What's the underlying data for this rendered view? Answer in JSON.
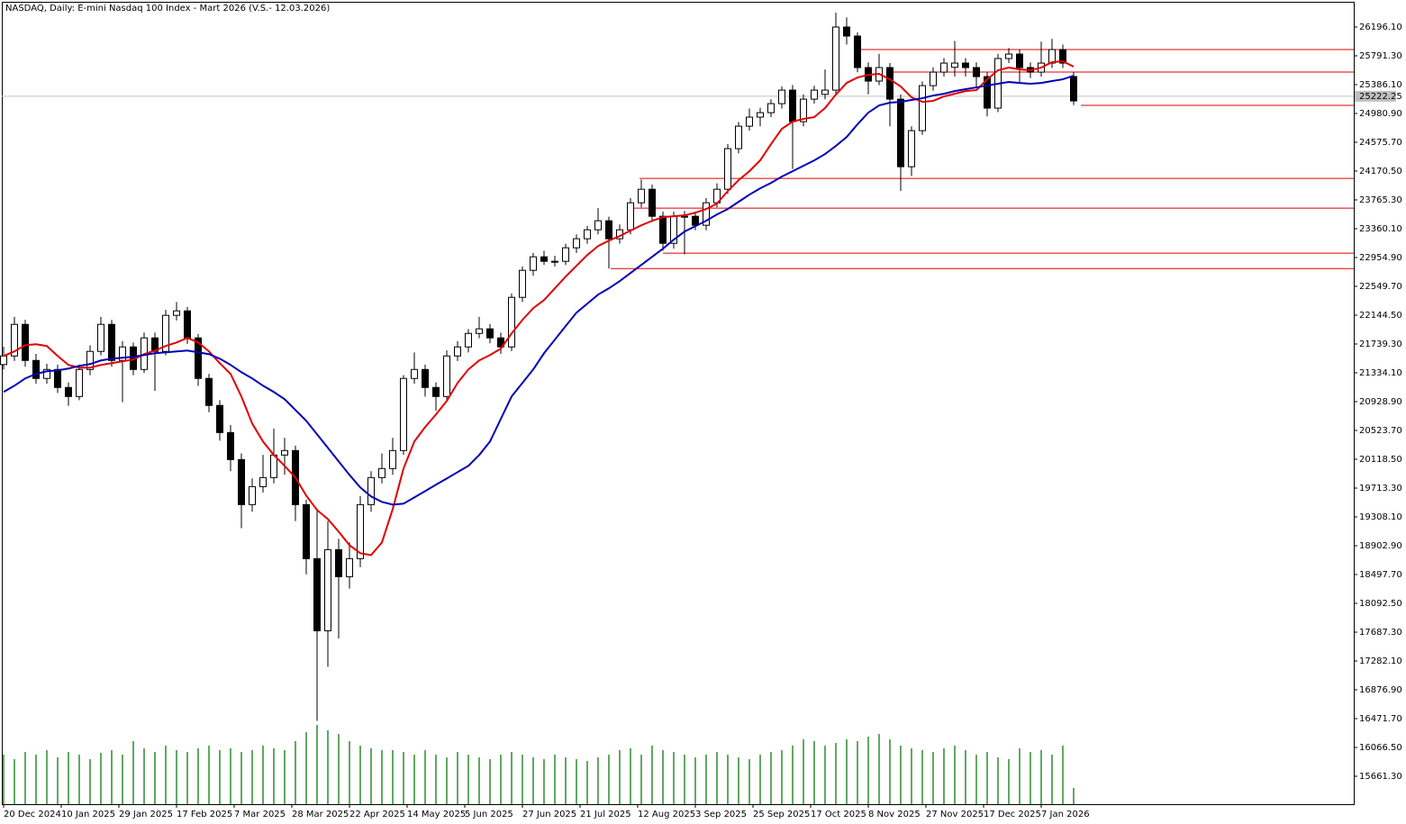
{
  "chart_data": {
    "type": "candlestick",
    "title": "NASDAQ, Daily:  E-mini Nasdaq 100 Index - Mart 2026 (V.S.- 12.03.2026)",
    "xlim": [
      -0.5,
      374.75
    ],
    "ylim": [
      15268.6,
      26550.8
    ],
    "xticks": [
      {
        "value": 0,
        "label": "20 Dec 2024"
      },
      {
        "value": 16,
        "label": "10 Jan 2025"
      },
      {
        "value": 32,
        "label": "29 Jan 2025"
      },
      {
        "value": 48,
        "label": "17 Feb 2025"
      },
      {
        "value": 64,
        "label": "7 Mar 2025"
      },
      {
        "value": 80,
        "label": "28 Mar 2025"
      },
      {
        "value": 96,
        "label": "22 Apr 2025"
      },
      {
        "value": 112,
        "label": "14 May 2025"
      },
      {
        "value": 128,
        "label": "5 Jun 2025"
      },
      {
        "value": 144,
        "label": "27 Jun 2025"
      },
      {
        "value": 160,
        "label": "21 Jul 2025"
      },
      {
        "value": 176,
        "label": "12 Aug 2025"
      },
      {
        "value": 192,
        "label": "3 Sep 2025"
      },
      {
        "value": 208,
        "label": "25 Sep 2025"
      },
      {
        "value": 224,
        "label": "17 Oct 2025"
      },
      {
        "value": 240,
        "label": "8 Nov 2025"
      },
      {
        "value": 256,
        "label": "27 Nov 2025"
      },
      {
        "value": 272,
        "label": "17 Dec 2025"
      },
      {
        "value": 288,
        "label": "7 Jan 2026"
      }
    ],
    "yticks": [
      {
        "value": 26196.1,
        "label": "26196.10"
      },
      {
        "value": 25791.3,
        "label": "25791.30"
      },
      {
        "value": 25386.1,
        "label": "25386.10"
      },
      {
        "value": 24980.9,
        "label": "24980.90"
      },
      {
        "value": 24575.7,
        "label": "24575.70"
      },
      {
        "value": 24170.5,
        "label": "24170.50"
      },
      {
        "value": 23765.3,
        "label": "23765.30"
      },
      {
        "value": 23360.1,
        "label": "23360.10"
      },
      {
        "value": 22954.9,
        "label": "22954.90"
      },
      {
        "value": 22549.7,
        "label": "22549.70"
      },
      {
        "value": 22144.5,
        "label": "22144.50"
      },
      {
        "value": 21739.3,
        "label": "21739.30"
      },
      {
        "value": 21334.1,
        "label": "21334.10"
      },
      {
        "value": 20928.9,
        "label": "20928.90"
      },
      {
        "value": 20523.7,
        "label": "20523.70"
      },
      {
        "value": 20118.5,
        "label": "20118.50"
      },
      {
        "value": 19713.3,
        "label": "19713.30"
      },
      {
        "value": 19308.1,
        "label": "19308.10"
      },
      {
        "value": 18902.9,
        "label": "18902.90"
      },
      {
        "value": 18497.7,
        "label": "18497.70"
      },
      {
        "value": 18092.5,
        "label": "18092.50"
      },
      {
        "value": 17687.3,
        "label": "17687.30"
      },
      {
        "value": 17282.1,
        "label": "17282.10"
      },
      {
        "value": 16876.9,
        "label": "16876.90"
      },
      {
        "value": 16471.7,
        "label": "16471.70"
      },
      {
        "value": 16066.5,
        "label": "16066.50"
      },
      {
        "value": 15661.3,
        "label": "15661.30"
      }
    ],
    "last_price": 25222.25,
    "x": [
      0,
      3,
      6,
      9,
      12,
      15,
      18,
      21,
      24,
      27,
      30,
      33,
      36,
      39,
      42,
      45,
      48,
      51,
      54,
      57,
      60,
      63,
      66,
      69,
      72,
      75,
      78,
      81,
      84,
      87,
      90,
      93,
      96,
      99,
      102,
      105,
      108,
      111,
      114,
      117,
      120,
      123,
      126,
      129,
      132,
      135,
      138,
      141,
      144,
      147,
      150,
      153,
      156,
      159,
      162,
      165,
      168,
      171,
      174,
      177,
      180,
      183,
      186,
      189,
      192,
      195,
      198,
      201,
      204,
      207,
      210,
      213,
      216,
      219,
      222,
      225,
      228,
      231,
      234,
      237,
      240,
      243,
      246,
      249,
      252,
      255,
      258,
      261,
      264,
      267,
      270,
      273,
      276,
      279,
      282,
      285,
      288,
      291,
      294,
      297
    ],
    "open": [
      21450,
      21571,
      22015,
      21508,
      21255,
      21381,
      21128,
      21001,
      21381,
      21635,
      22015,
      21508,
      21698,
      21381,
      21825,
      21635,
      22142,
      22205,
      21825,
      21255,
      20875,
      20494,
      20114,
      19481,
      19734,
      19861,
      20178,
      20241,
      19481,
      18721,
      17707,
      18847,
      18467,
      18721,
      19481,
      19861,
      19988,
      20241,
      21255,
      21381,
      21128,
      21001,
      21571,
      21698,
      21888,
      21952,
      21825,
      21698,
      22395,
      22775,
      22965,
      22902,
      22902,
      23092,
      23219,
      23345,
      23472,
      23219,
      23345,
      23725,
      23915,
      23535,
      23155,
      23535,
      23535,
      23409,
      23725,
      23915,
      24486,
      24802,
      24929,
      24992,
      25119,
      25309,
      24866,
      25182,
      25250,
      25309,
      26196,
      26069,
      25626,
      25436,
      25626,
      25182,
      24232,
      24739,
      25372,
      25562,
      25630,
      25689,
      25626,
      25499,
      25056,
      25753,
      25816,
      25626,
      25562,
      25689,
      25879,
      25500
    ],
    "high": [
      21700,
      22120,
      22080,
      21600,
      21460,
      21450,
      21200,
      21450,
      21720,
      22120,
      22080,
      21780,
      21760,
      21900,
      21900,
      22220,
      22330,
      22260,
      21880,
      21320,
      20950,
      20600,
      20200,
      19850,
      20180,
      20550,
      20420,
      20310,
      19550,
      19400,
      19250,
      19000,
      18950,
      19600,
      19950,
      20200,
      20420,
      21300,
      21620,
      21450,
      21200,
      21650,
      21780,
      21950,
      22120,
      22020,
      21900,
      22450,
      22830,
      23020,
      23050,
      22980,
      23150,
      23280,
      23400,
      23650,
      23530,
      23420,
      23790,
      24050,
      23980,
      23600,
      23600,
      23610,
      23600,
      23790,
      24000,
      24550,
      24860,
      25050,
      25060,
      25180,
      25360,
      25380,
      25250,
      25370,
      25600,
      26399,
      26330,
      26120,
      25700,
      25820,
      25690,
      25250,
      24800,
      25430,
      25630,
      25760,
      26000,
      25760,
      25700,
      25560,
      25820,
      25900,
      25880,
      25700,
      25990,
      26030,
      25950,
      25560
    ],
    "low": [
      21380,
      21500,
      21420,
      21180,
      21180,
      21050,
      20870,
      20950,
      21300,
      21580,
      21420,
      20920,
      21300,
      21330,
      21080,
      21580,
      22070,
      21740,
      21150,
      20780,
      20380,
      19950,
      19150,
      19380,
      19650,
      19780,
      19900,
      19250,
      18500,
      16440,
      17200,
      17600,
      18300,
      18600,
      19380,
      19780,
      19900,
      20180,
      21180,
      21000,
      20800,
      20950,
      21500,
      21620,
      21820,
      21750,
      21600,
      21640,
      22330,
      22700,
      22850,
      22830,
      22850,
      23020,
      23150,
      23280,
      22800,
      23150,
      23280,
      23660,
      23460,
      23050,
      23080,
      23000,
      23340,
      23340,
      23660,
      23850,
      24420,
      24740,
      24800,
      24930,
      25050,
      24200,
      24800,
      25120,
      25180,
      25250,
      25950,
      25560,
      25250,
      25380,
      24800,
      23890,
      24100,
      24680,
      25300,
      25500,
      25500,
      25500,
      25350,
      24940,
      25000,
      25690,
      25400,
      25480,
      25500,
      25620,
      25620,
      25100
    ],
    "close": [
      21571,
      22015,
      21508,
      21255,
      21381,
      21128,
      21001,
      21381,
      21635,
      22015,
      21508,
      21698,
      21381,
      21825,
      21635,
      22142,
      22205,
      21825,
      21255,
      20875,
      20494,
      20114,
      19481,
      19734,
      19861,
      20178,
      20241,
      19481,
      18721,
      17707,
      18847,
      18467,
      18721,
      19481,
      19861,
      19988,
      20241,
      21255,
      21381,
      21128,
      21001,
      21571,
      21698,
      21888,
      21952,
      21825,
      21698,
      22395,
      22775,
      22965,
      22902,
      22902,
      23092,
      23219,
      23345,
      23472,
      23219,
      23345,
      23725,
      23915,
      23535,
      23155,
      23535,
      23535,
      23409,
      23725,
      23915,
      24486,
      24802,
      24929,
      24992,
      25119,
      25309,
      24866,
      25182,
      25309,
      25309,
      26196,
      26069,
      25626,
      25436,
      25626,
      25182,
      24232,
      24739,
      25372,
      25562,
      25689,
      25689,
      25626,
      25499,
      25056,
      25753,
      25816,
      25626,
      25562,
      25689,
      25879,
      25689,
      25157
    ],
    "up_color": "#ffffff",
    "down_color": "#000000",
    "edge_color": "#000000",
    "moving_averages": [
      {
        "color": "#e00000",
        "values": [
          21571,
          21635,
          21723,
          21736,
          21711,
          21571,
          21445,
          21407,
          21407,
          21445,
          21470,
          21495,
          21521,
          21597,
          21647,
          21711,
          21761,
          21825,
          21761,
          21635,
          21470,
          21318,
          21001,
          20621,
          20368,
          20178,
          20026,
          19861,
          19608,
          19405,
          19278,
          19101,
          18911,
          18797,
          18771,
          18949,
          19418,
          19988,
          20368,
          20571,
          20748,
          20938,
          21191,
          21381,
          21508,
          21584,
          21673,
          21888,
          22078,
          22243,
          22357,
          22522,
          22686,
          22838,
          22990,
          23117,
          23193,
          23257,
          23333,
          23409,
          23472,
          23523,
          23535,
          23548,
          23586,
          23637,
          23713,
          23890,
          24042,
          24169,
          24321,
          24549,
          24764,
          24866,
          24904,
          24929,
          25056,
          25246,
          25410,
          25486,
          25524,
          25537,
          25461,
          25360,
          25208,
          25144,
          25157,
          25220,
          25258,
          25296,
          25309,
          25461,
          25588,
          25626,
          25601,
          25588,
          25626,
          25702,
          25715,
          25639
        ]
      },
      {
        "color": "#0000b4",
        "values": [
          21065,
          21153,
          21255,
          21318,
          21356,
          21369,
          21394,
          21432,
          21457,
          21508,
          21533,
          21546,
          21559,
          21584,
          21609,
          21622,
          21635,
          21647,
          21622,
          21597,
          21533,
          21445,
          21343,
          21255,
          21153,
          21065,
          20963,
          20811,
          20659,
          20469,
          20279,
          20089,
          19899,
          19722,
          19595,
          19519,
          19481,
          19494,
          19582,
          19671,
          19760,
          19848,
          19937,
          20026,
          20178,
          20368,
          20685,
          21001,
          21191,
          21381,
          21609,
          21800,
          21990,
          22180,
          22306,
          22433,
          22522,
          22623,
          22737,
          22851,
          22965,
          23079,
          23206,
          23320,
          23396,
          23472,
          23561,
          23637,
          23738,
          23839,
          23928,
          24004,
          24093,
          24169,
          24245,
          24321,
          24410,
          24524,
          24650,
          24828,
          24992,
          25094,
          25132,
          25144,
          25170,
          25195,
          25233,
          25258,
          25296,
          25322,
          25347,
          25373,
          25398,
          25423,
          25410,
          25398,
          25410,
          25436,
          25461,
          25512
        ]
      }
    ],
    "volume": {
      "color": "#2e8b2e",
      "lim": [
        0,
        100
      ],
      "values": [
        55,
        50,
        58,
        55,
        60,
        52,
        58,
        55,
        50,
        57,
        60,
        55,
        70,
        62,
        58,
        65,
        60,
        58,
        62,
        65,
        60,
        62,
        58,
        60,
        65,
        62,
        60,
        70,
        80,
        88,
        82,
        78,
        70,
        65,
        62,
        60,
        60,
        58,
        55,
        60,
        55,
        52,
        58,
        55,
        52,
        50,
        55,
        58,
        55,
        52,
        50,
        55,
        52,
        50,
        48,
        52,
        55,
        60,
        62,
        55,
        65,
        60,
        58,
        55,
        52,
        55,
        58,
        55,
        52,
        50,
        55,
        58,
        60,
        65,
        72,
        70,
        65,
        68,
        72,
        70,
        75,
        78,
        72,
        65,
        62,
        60,
        58,
        62,
        65,
        60,
        55,
        58,
        52,
        50,
        62,
        58,
        60,
        55,
        65,
        18
      ]
    },
    "levels": {
      "color": "#e00000",
      "lines": [
        {
          "value": 25879,
          "from": 236.5
        },
        {
          "value": 25563,
          "from": 245
        },
        {
          "value": 25094,
          "from": 299
        },
        {
          "value": 24068,
          "from": 176.5
        },
        {
          "value": 23649,
          "from": 174
        },
        {
          "value": 23016,
          "from": 183
        },
        {
          "value": 22800,
          "from": 168.5
        }
      ]
    }
  }
}
